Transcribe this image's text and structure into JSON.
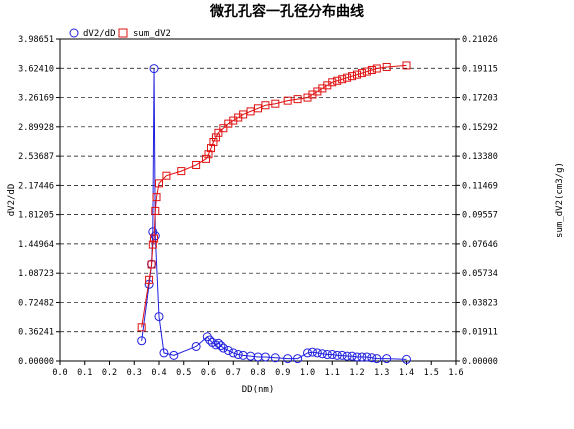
{
  "chart_data": {
    "type": "line",
    "title": "微孔孔容一孔径分布曲线",
    "xlabel": "DD(nm)",
    "ylabel_left": "dV2/dD",
    "ylabel_right": "sum_dV2(cm3/g)",
    "x_range": [
      0.0,
      1.6
    ],
    "y_left_range": [
      0.0,
      3.98651
    ],
    "y_right_range": [
      0.0,
      0.21026
    ],
    "x_ticks": [
      "0.0",
      "0.1",
      "0.2",
      "0.3",
      "0.4",
      "0.5",
      "0.6",
      "0.7",
      "0.8",
      "0.9",
      "1.0",
      "1.1",
      "1.2",
      "1.3",
      "1.4",
      "1.5",
      "1.6"
    ],
    "y_left_ticks": [
      "0.00000",
      "0.36241",
      "0.72482",
      "1.08723",
      "1.44964",
      "1.81205",
      "2.17446",
      "2.53687",
      "2.89928",
      "3.26169",
      "3.62410",
      "3.98651"
    ],
    "y_right_ticks": [
      "0.00000",
      "0.01911",
      "0.03823",
      "0.05734",
      "0.07646",
      "0.09557",
      "0.11469",
      "0.13380",
      "0.15292",
      "0.17203",
      "0.19115",
      "0.21026"
    ],
    "grid": "horizontal dashed",
    "legend_position": "top-left",
    "series": [
      {
        "name": "dV2/dD",
        "axis": "left",
        "color": "#2020e0",
        "marker": "circle",
        "x": [
          0.33,
          0.36,
          0.37,
          0.375,
          0.38,
          0.385,
          0.4,
          0.42,
          0.46,
          0.55,
          0.595,
          0.605,
          0.615,
          0.63,
          0.64,
          0.65,
          0.66,
          0.68,
          0.7,
          0.72,
          0.74,
          0.77,
          0.8,
          0.83,
          0.87,
          0.92,
          0.96,
          1.0,
          1.02,
          1.04,
          1.06,
          1.08,
          1.1,
          1.12,
          1.14,
          1.16,
          1.18,
          1.2,
          1.22,
          1.24,
          1.26,
          1.28,
          1.32,
          1.4
        ],
        "y": [
          0.25,
          0.95,
          1.2,
          1.6,
          3.62,
          1.55,
          0.55,
          0.1,
          0.07,
          0.18,
          0.3,
          0.26,
          0.23,
          0.2,
          0.22,
          0.19,
          0.16,
          0.13,
          0.1,
          0.08,
          0.07,
          0.06,
          0.05,
          0.05,
          0.04,
          0.03,
          0.03,
          0.1,
          0.11,
          0.1,
          0.09,
          0.08,
          0.08,
          0.07,
          0.07,
          0.06,
          0.06,
          0.05,
          0.05,
          0.05,
          0.04,
          0.03,
          0.03,
          0.02
        ]
      },
      {
        "name": "sum_dV2",
        "axis": "right",
        "color": "#e01010",
        "marker": "square",
        "x": [
          0.33,
          0.36,
          0.37,
          0.375,
          0.38,
          0.385,
          0.39,
          0.4,
          0.43,
          0.49,
          0.55,
          0.59,
          0.6,
          0.61,
          0.62,
          0.63,
          0.64,
          0.66,
          0.68,
          0.7,
          0.72,
          0.74,
          0.77,
          0.8,
          0.83,
          0.87,
          0.92,
          0.96,
          1.0,
          1.02,
          1.04,
          1.06,
          1.08,
          1.1,
          1.12,
          1.14,
          1.16,
          1.18,
          1.2,
          1.22,
          1.24,
          1.26,
          1.28,
          1.32,
          1.4
        ],
        "y": [
          0.022,
          0.053,
          0.063,
          0.076,
          0.08,
          0.098,
          0.107,
          0.116,
          0.121,
          0.124,
          0.128,
          0.132,
          0.135,
          0.139,
          0.143,
          0.146,
          0.149,
          0.152,
          0.155,
          0.157,
          0.159,
          0.161,
          0.163,
          0.165,
          0.167,
          0.168,
          0.17,
          0.171,
          0.172,
          0.174,
          0.176,
          0.178,
          0.18,
          0.182,
          0.183,
          0.184,
          0.185,
          0.186,
          0.187,
          0.188,
          0.189,
          0.19,
          0.191,
          0.192,
          0.193
        ]
      }
    ]
  }
}
